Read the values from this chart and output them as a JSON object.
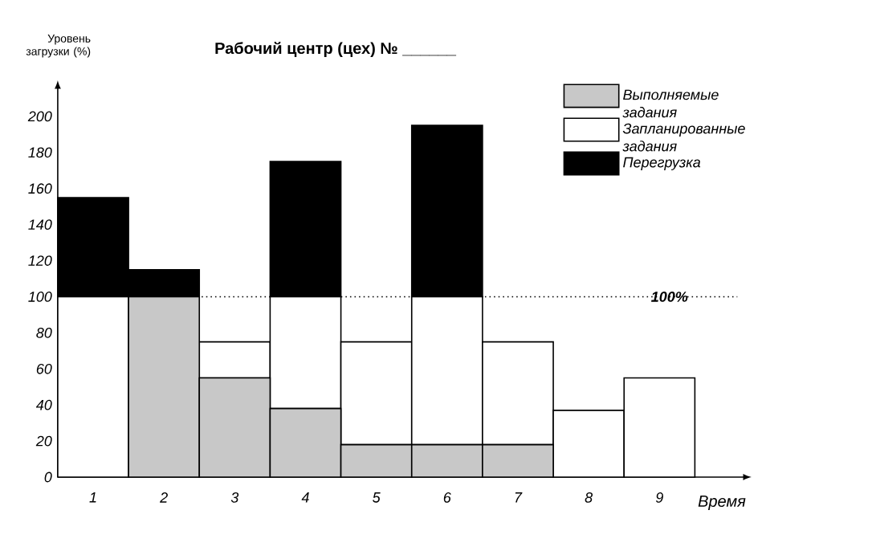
{
  "chart_data": {
    "type": "bar",
    "stacked": true,
    "title": "Рабочий центр (цех) № ______",
    "ylabel": "Уровень загрузки (%)",
    "xlabel": "Время",
    "categories": [
      "1",
      "2",
      "3",
      "4",
      "5",
      "6",
      "7",
      "8",
      "9"
    ],
    "series": [
      {
        "name": "Выполняемые задания",
        "color": "#c8c8c8",
        "values": [
          0,
          100,
          55,
          38,
          18,
          18,
          18,
          0,
          0
        ]
      },
      {
        "name": "Запланированные задания",
        "color": "#ffffff",
        "values": [
          100,
          0,
          20,
          62,
          57,
          82,
          57,
          37,
          55
        ]
      },
      {
        "name": "Перегрузка",
        "color": "#000000",
        "values": [
          55,
          15,
          0,
          75,
          0,
          95,
          0,
          0,
          0
        ]
      }
    ],
    "ylim": [
      0,
      220
    ],
    "yticks": [
      0,
      20,
      40,
      60,
      80,
      100,
      120,
      140,
      160,
      180,
      200
    ],
    "ref_lines": [
      {
        "axis": "y",
        "value": 100,
        "label": "100%",
        "line_style": "dotted"
      }
    ],
    "legend": "top right",
    "grid": false
  }
}
